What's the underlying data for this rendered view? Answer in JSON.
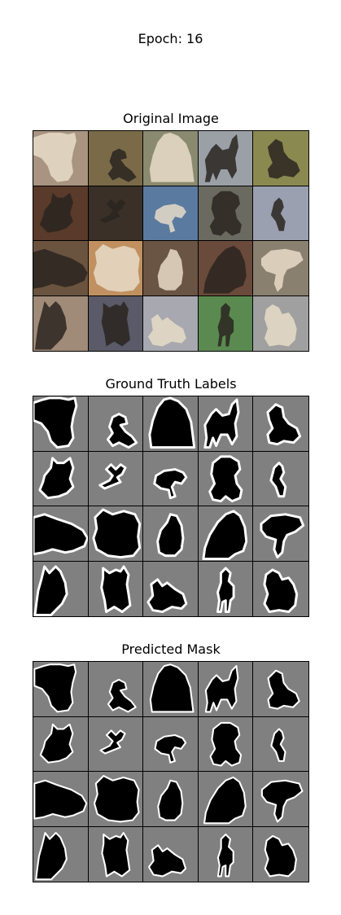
{
  "figure": {
    "title": "Epoch: 16",
    "panels": [
      {
        "id": "original",
        "title": "Original Image"
      },
      {
        "id": "ground-truth",
        "title": "Ground Truth Labels"
      },
      {
        "id": "predicted",
        "title": "Predicted Mask"
      }
    ],
    "grid": {
      "rows": 4,
      "cols": 5
    },
    "colors": {
      "mask_background": "#808080",
      "mask_foreground": "#000000",
      "mask_outline": "#ffffff"
    },
    "photos": [
      "#a89480",
      "#7a6a48",
      "#8a8a70",
      "#9aa0a6",
      "#8a8a50",
      "#5a3a2a",
      "#3a3028",
      "#5a7aa0",
      "#6a6a60",
      "#9aa0b0",
      "#6a5440",
      "#c09060",
      "#6a5444",
      "#6a4a3a",
      "#8a8070",
      "#a08a78",
      "#5a5a68",
      "#a8a8b0",
      "#5a8a50",
      "#a0a0a0"
    ]
  }
}
